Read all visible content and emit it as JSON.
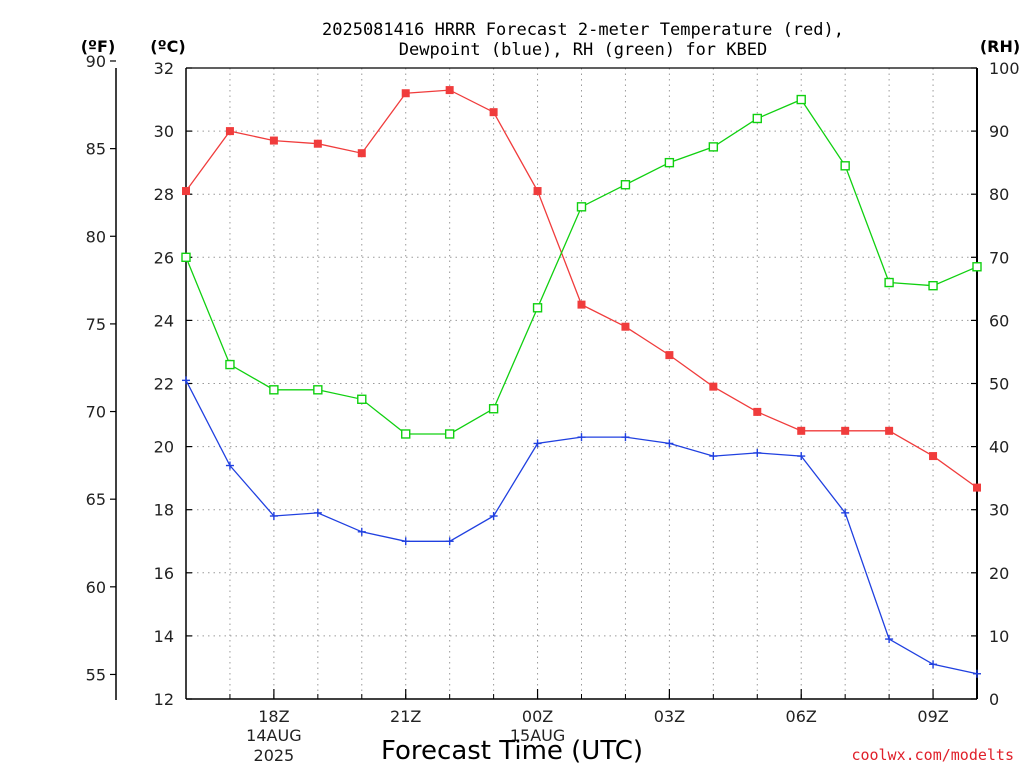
{
  "chart_data": {
    "type": "line",
    "title_line1": "2025081416 HRRR Forecast 2-meter Temperature (red),",
    "title_line2": "Dewpoint (blue), RH (green) for KBED",
    "xlabel": "Forecast Time (UTC)",
    "credit": "coolwx.com/modelts",
    "left_units": {
      "fahrenheit": "(ºF)",
      "celsius": "(ºC)"
    },
    "right_units": "(RH)",
    "x_hours": [
      16,
      17,
      18,
      19,
      20,
      21,
      22,
      23,
      24,
      25,
      26,
      27,
      28,
      29,
      30,
      31,
      32,
      33,
      34
    ],
    "x_ticks": [
      {
        "hour": 18,
        "label": "18Z",
        "sub1": "14AUG",
        "sub2": "2025"
      },
      {
        "hour": 21,
        "label": "21Z",
        "sub1": "",
        "sub2": ""
      },
      {
        "hour": 24,
        "label": "00Z",
        "sub1": "15AUG",
        "sub2": ""
      },
      {
        "hour": 27,
        "label": "03Z",
        "sub1": "",
        "sub2": ""
      },
      {
        "hour": 30,
        "label": "06Z",
        "sub1": "",
        "sub2": ""
      },
      {
        "hour": 33,
        "label": "09Z",
        "sub1": "",
        "sub2": ""
      }
    ],
    "celsius_axis": {
      "range": [
        12,
        32
      ],
      "ticks": [
        12,
        14,
        16,
        18,
        20,
        22,
        24,
        26,
        28,
        30,
        32
      ]
    },
    "fahrenheit_axis": {
      "ticks": [
        55,
        60,
        65,
        70,
        75,
        80,
        85,
        90
      ]
    },
    "rh_axis": {
      "range": [
        0,
        100
      ],
      "ticks": [
        0,
        10,
        20,
        30,
        40,
        50,
        60,
        70,
        80,
        90,
        100
      ]
    },
    "series": [
      {
        "name": "Temperature",
        "axis": "celsius",
        "color": "#f03c3c",
        "marker": "filled-square",
        "values": [
          28.1,
          30.0,
          29.7,
          29.6,
          29.3,
          31.2,
          31.3,
          30.6,
          28.1,
          24.5,
          23.8,
          22.9,
          21.9,
          21.1,
          20.5,
          20.5,
          20.5,
          19.7,
          18.7
        ]
      },
      {
        "name": "Dewpoint",
        "axis": "celsius",
        "color": "#2040e0",
        "marker": "plus",
        "values": [
          22.1,
          19.4,
          17.8,
          17.9,
          17.3,
          17.0,
          17.0,
          17.8,
          20.1,
          20.3,
          20.3,
          20.1,
          19.7,
          19.8,
          19.7,
          17.9,
          13.9,
          13.1,
          12.8
        ]
      },
      {
        "name": "RH",
        "axis": "rh",
        "color": "#10d010",
        "marker": "open-square",
        "values": [
          70,
          53,
          49,
          49,
          47.5,
          42,
          42,
          46,
          62,
          78,
          81.5,
          85,
          87.5,
          92,
          95,
          84.5,
          66,
          65.5,
          68.5
        ]
      }
    ]
  }
}
